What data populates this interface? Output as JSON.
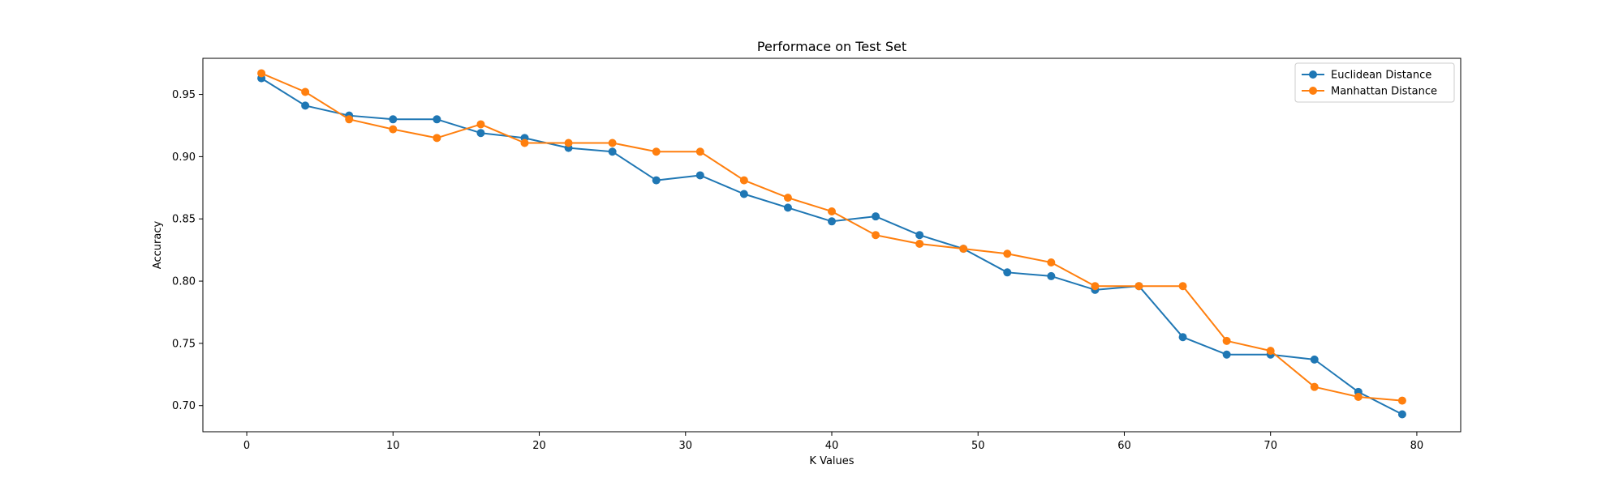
{
  "chart_data": {
    "type": "line",
    "title": "Performace on Test Set",
    "xlabel": "K Values",
    "ylabel": "Accuracy",
    "xlim": [
      -3,
      83
    ],
    "ylim": [
      0.679,
      0.979
    ],
    "xticks": [
      0,
      10,
      20,
      30,
      40,
      50,
      60,
      70,
      80
    ],
    "yticks": [
      0.7,
      0.75,
      0.8,
      0.85,
      0.9,
      0.95
    ],
    "ytick_labels": [
      "0.70",
      "0.75",
      "0.80",
      "0.85",
      "0.90",
      "0.95"
    ],
    "grid": false,
    "legend_position": "top-right",
    "x": [
      1,
      4,
      7,
      10,
      13,
      16,
      19,
      22,
      25,
      28,
      31,
      34,
      37,
      40,
      43,
      46,
      49,
      52,
      55,
      58,
      61,
      64,
      67,
      70,
      73,
      76,
      79
    ],
    "series": [
      {
        "name": "Euclidean Distance",
        "color": "#1f77b4",
        "values": [
          0.963,
          0.941,
          0.933,
          0.93,
          0.93,
          0.919,
          0.915,
          0.907,
          0.904,
          0.881,
          0.885,
          0.87,
          0.859,
          0.848,
          0.852,
          0.837,
          0.826,
          0.807,
          0.804,
          0.793,
          0.796,
          0.755,
          0.741,
          0.741,
          0.737,
          0.711,
          0.693
        ]
      },
      {
        "name": "Manhattan Distance",
        "color": "#ff7f0e",
        "values": [
          0.967,
          0.952,
          0.93,
          0.922,
          0.915,
          0.926,
          0.911,
          0.911,
          0.911,
          0.904,
          0.904,
          0.881,
          0.867,
          0.856,
          0.837,
          0.83,
          0.826,
          0.822,
          0.815,
          0.796,
          0.796,
          0.796,
          0.752,
          0.744,
          0.715,
          0.707,
          0.704
        ]
      }
    ]
  }
}
